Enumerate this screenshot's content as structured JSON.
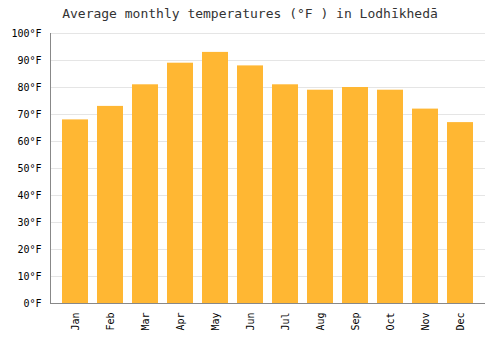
{
  "chart_data": {
    "type": "bar",
    "title": "Average monthly temperatures (°F ) in Lodhīkhedā",
    "categories": [
      "Jan",
      "Feb",
      "Mar",
      "Apr",
      "May",
      "Jun",
      "Jul",
      "Aug",
      "Sep",
      "Oct",
      "Nov",
      "Dec"
    ],
    "values": [
      68,
      73,
      81,
      89,
      93,
      88,
      81,
      79,
      80,
      79,
      72,
      67
    ],
    "color": "#FFB733",
    "ylim": [
      0,
      100
    ],
    "yticks": [
      {
        "value": 0,
        "label": "0°F"
      },
      {
        "value": 10,
        "label": "10°F"
      },
      {
        "value": 20,
        "label": "20°F"
      },
      {
        "value": 30,
        "label": "30°F"
      },
      {
        "value": 40,
        "label": "40°F"
      },
      {
        "value": 50,
        "label": "50°F"
      },
      {
        "value": 60,
        "label": "60°F"
      },
      {
        "value": 70,
        "label": "70°F"
      },
      {
        "value": 80,
        "label": "80°F"
      },
      {
        "value": 90,
        "label": "90°F"
      },
      {
        "value": 100,
        "label": "100°F"
      }
    ],
    "grid": true
  }
}
